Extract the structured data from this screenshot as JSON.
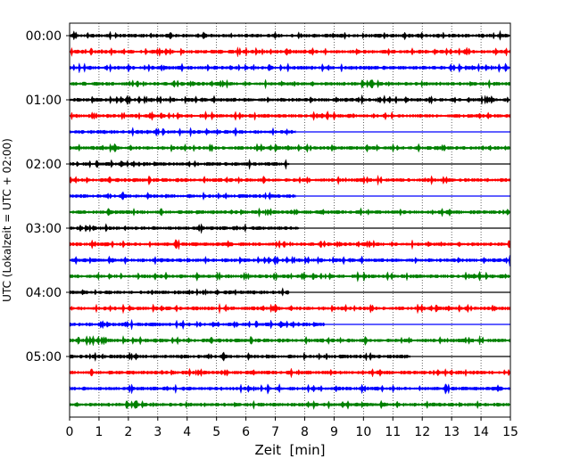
{
  "chart_data": {
    "type": "line",
    "title": "",
    "xlabel": "Zeit  [min]",
    "ylabel": "UTC (Lokalzeit = UTC + 02:00)",
    "xlim": [
      0,
      15
    ],
    "x_ticks": [
      0,
      1,
      2,
      3,
      4,
      5,
      6,
      7,
      8,
      9,
      10,
      11,
      12,
      13,
      14,
      15
    ],
    "grid": "vertical dotted lines at each minute",
    "trace_interval_minutes": 15,
    "trace_colors": [
      "#000000",
      "#ff0000",
      "#0000ff",
      "#008000"
    ],
    "y_tick_labels": [
      "00:00",
      "01:00",
      "02:00",
      "03:00",
      "04:00",
      "05:00"
    ],
    "traces": [
      {
        "start": "00:00",
        "color": "#000000",
        "length_min": 15
      },
      {
        "start": "00:15",
        "color": "#ff0000",
        "length_min": 15
      },
      {
        "start": "00:30",
        "color": "#0000ff",
        "length_min": 15
      },
      {
        "start": "00:45",
        "color": "#008000",
        "length_min": 15
      },
      {
        "start": "01:00",
        "color": "#000000",
        "length_min": 15
      },
      {
        "start": "01:15",
        "color": "#ff0000",
        "length_min": 15
      },
      {
        "start": "01:30",
        "color": "#0000ff",
        "length_min": 7.7
      },
      {
        "start": "01:45",
        "color": "#008000",
        "length_min": 15
      },
      {
        "start": "02:00",
        "color": "#000000",
        "length_min": 7.5
      },
      {
        "start": "02:15",
        "color": "#ff0000",
        "length_min": 15
      },
      {
        "start": "02:30",
        "color": "#0000ff",
        "length_min": 7.7
      },
      {
        "start": "02:45",
        "color": "#008000",
        "length_min": 15
      },
      {
        "start": "03:00",
        "color": "#000000",
        "length_min": 7.8
      },
      {
        "start": "03:15",
        "color": "#ff0000",
        "length_min": 15
      },
      {
        "start": "03:30",
        "color": "#0000ff",
        "length_min": 15
      },
      {
        "start": "03:45",
        "color": "#008000",
        "length_min": 15
      },
      {
        "start": "04:00",
        "color": "#000000",
        "length_min": 7.5
      },
      {
        "start": "04:15",
        "color": "#ff0000",
        "length_min": 15
      },
      {
        "start": "04:30",
        "color": "#0000ff",
        "length_min": 8.7
      },
      {
        "start": "04:45",
        "color": "#008000",
        "length_min": 15
      },
      {
        "start": "05:00",
        "color": "#000000",
        "length_min": 11.6
      },
      {
        "start": "05:15",
        "color": "#ff0000",
        "length_min": 15
      },
      {
        "start": "05:30",
        "color": "#0000ff",
        "length_min": 15
      },
      {
        "start": "05:45",
        "color": "#008000",
        "length_min": 15
      }
    ]
  }
}
